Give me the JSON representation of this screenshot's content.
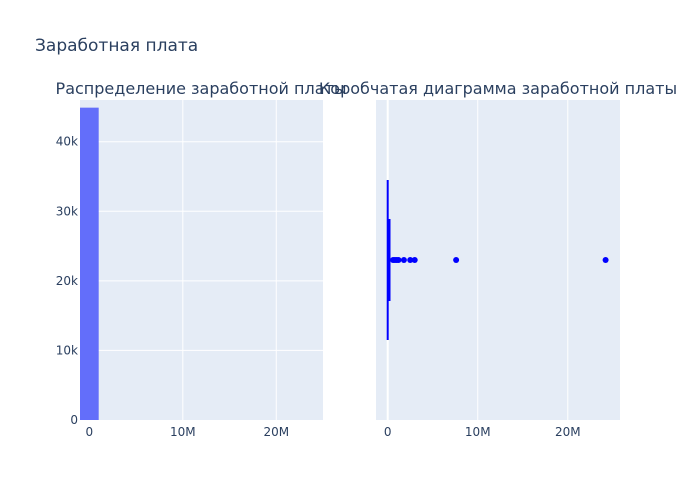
{
  "chart_data": [
    {
      "type": "bar",
      "title": "Заработная плата",
      "subtitle": "Распределение заработной платы",
      "xlabel": "",
      "ylabel": "",
      "xlim": [
        -1000000,
        25000000
      ],
      "ylim": [
        0,
        46000
      ],
      "x_ticks": [
        0,
        10000000,
        20000000
      ],
      "x_tick_labels": [
        "0",
        "10M",
        "20M"
      ],
      "y_ticks": [
        0,
        10000,
        20000,
        30000,
        40000
      ],
      "y_tick_labels": [
        "0",
        "10k",
        "20k",
        "30k",
        "40k"
      ],
      "bins": [
        {
          "x0": -1000000,
          "x1": 1000000,
          "value": 44900
        }
      ],
      "grid": true,
      "colors": {
        "bar": "#636efa",
        "plot_bg": "#e5ecf6",
        "grid": "#ffffff"
      }
    },
    {
      "type": "box",
      "title": "Коробчатая диаграмма заработной платы",
      "xlabel": "",
      "ylabel": "",
      "xlim": [
        -1300000,
        25800000
      ],
      "x_ticks": [
        0,
        10000000,
        20000000
      ],
      "x_tick_labels": [
        "0",
        "10M",
        "20M"
      ],
      "box": {
        "min": 0,
        "q1": 60000,
        "median": 120000,
        "q3": 200000,
        "max": 400000
      },
      "outliers": [
        600000,
        800000,
        1000000,
        1200000,
        1800000,
        2500000,
        3000000,
        7600000,
        24200000
      ],
      "grid": true,
      "colors": {
        "box": "#0000ff",
        "plot_bg": "#e5ecf6",
        "grid": "#ffffff"
      }
    }
  ]
}
